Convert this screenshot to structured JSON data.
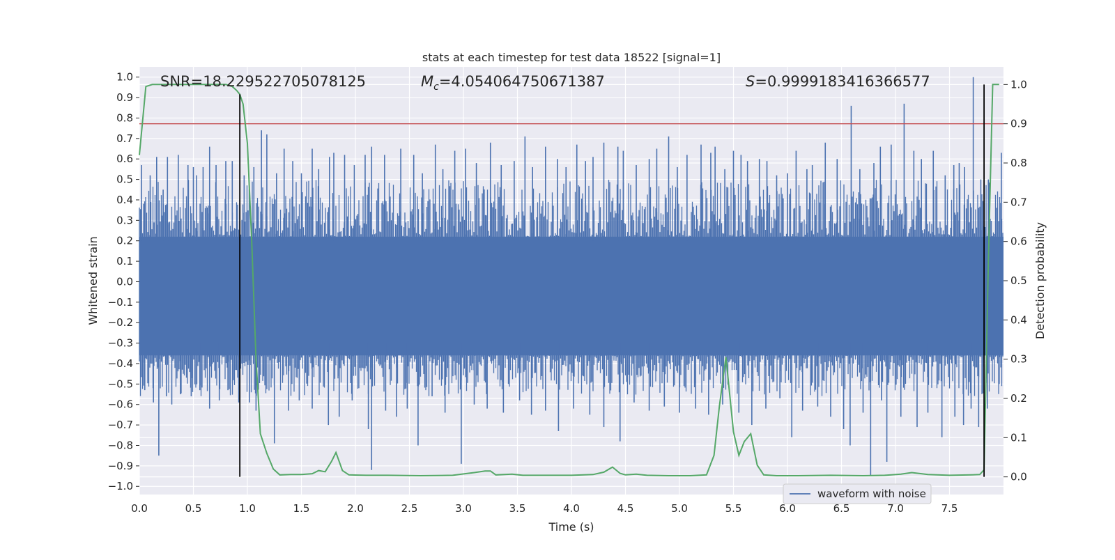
{
  "chart_data": {
    "type": "line",
    "title": "stats at each timestep for test data 18522 [signal=1]",
    "xlabel": "Time (s)",
    "ylabel": "Whitened strain",
    "y2label": "Detection probability",
    "xlim": [
      0.0,
      8.0
    ],
    "ylim": [
      -1.04,
      1.05
    ],
    "y2lim": [
      -0.045,
      1.045
    ],
    "x_ticks": [
      0.0,
      0.5,
      1.0,
      1.5,
      2.0,
      2.5,
      3.0,
      3.5,
      4.0,
      4.5,
      5.0,
      5.5,
      6.0,
      6.5,
      7.0,
      7.5
    ],
    "x_tick_labels": [
      "0.0",
      "0.5",
      "1.0",
      "1.5",
      "2.0",
      "2.5",
      "3.0",
      "3.5",
      "4.0",
      "4.5",
      "5.0",
      "5.5",
      "6.0",
      "6.5",
      "7.0",
      "7.5"
    ],
    "y_ticks": [
      1.0,
      0.9,
      0.8,
      0.7,
      0.6,
      0.5,
      0.4,
      0.3,
      0.2,
      0.1,
      0.0,
      -0.1,
      -0.2,
      -0.3,
      -0.4,
      -0.5,
      -0.6,
      -0.7,
      -0.8,
      -0.9,
      -1.0
    ],
    "y_tick_labels": [
      "1.0",
      "0.9",
      "0.8",
      "0.7",
      "0.6",
      "0.5",
      "0.4",
      "0.3",
      "0.2",
      "0.1",
      "0.0",
      "−0.1",
      "−0.2",
      "−0.3",
      "−0.4",
      "−0.5",
      "−0.6",
      "−0.7",
      "−0.8",
      "−0.9",
      "−1.0"
    ],
    "y2_ticks": [
      1.0,
      0.9,
      0.8,
      0.7,
      0.6,
      0.5,
      0.4,
      0.3,
      0.2,
      0.1,
      0.0
    ],
    "y2_tick_labels": [
      "1.0",
      "0.9",
      "0.8",
      "0.7",
      "0.6",
      "0.5",
      "0.4",
      "0.3",
      "0.2",
      "0.1",
      "0.0"
    ],
    "annotations": {
      "snr": "SNR=18.229522705078125",
      "mc_symbol": "M",
      "mc_sub": "c",
      "mc_value": "=4.054064750671387",
      "s_symbol": "S",
      "s_value": "=0.9999183416366577"
    },
    "legend": {
      "label": "waveform with noise",
      "placement": "lower-right"
    },
    "grid": true,
    "threshold_line": {
      "axis": "y2",
      "value": 0.9,
      "color": "#c44e52"
    },
    "vertical_markers": [
      {
        "x": 0.93,
        "y2_from": 0.0,
        "y2_to": 0.975
      },
      {
        "x": 7.82,
        "y2_from": 0.0,
        "y2_to": 1.0
      }
    ],
    "series": [
      {
        "name": "waveform with noise",
        "axis": "y",
        "color": "#4c72b0",
        "core_band": [
          -0.36,
          0.22
        ],
        "positive_spikes": [
          [
            0.02,
            0.57
          ],
          [
            0.1,
            0.52
          ],
          [
            0.16,
            0.61
          ],
          [
            0.22,
            0.45
          ],
          [
            0.26,
            0.61
          ],
          [
            0.36,
            0.62
          ],
          [
            0.45,
            0.57
          ],
          [
            0.5,
            0.56
          ],
          [
            0.53,
            0.52
          ],
          [
            0.59,
            0.56
          ],
          [
            0.65,
            0.66
          ],
          [
            0.71,
            0.57
          ],
          [
            0.8,
            0.59
          ],
          [
            0.86,
            0.59
          ],
          [
            0.97,
            0.52
          ],
          [
            1.06,
            0.56
          ],
          [
            1.13,
            0.74
          ],
          [
            1.18,
            0.72
          ],
          [
            1.27,
            0.53
          ],
          [
            1.34,
            0.65
          ],
          [
            1.42,
            0.59
          ],
          [
            1.5,
            0.53
          ],
          [
            1.6,
            0.65
          ],
          [
            1.66,
            0.55
          ],
          [
            1.76,
            0.61
          ],
          [
            1.8,
            0.63
          ],
          [
            1.9,
            0.62
          ],
          [
            1.99,
            0.57
          ],
          [
            2.09,
            0.62
          ],
          [
            2.15,
            0.66
          ],
          [
            2.27,
            0.62
          ],
          [
            2.42,
            0.65
          ],
          [
            2.54,
            0.62
          ],
          [
            2.62,
            0.53
          ],
          [
            2.74,
            0.67
          ],
          [
            2.81,
            0.55
          ],
          [
            2.92,
            0.64
          ],
          [
            3.02,
            0.65
          ],
          [
            3.12,
            0.58
          ],
          [
            3.25,
            0.68
          ],
          [
            3.35,
            0.57
          ],
          [
            3.47,
            0.59
          ],
          [
            3.57,
            0.71
          ],
          [
            3.64,
            0.56
          ],
          [
            3.76,
            0.66
          ],
          [
            3.87,
            0.6
          ],
          [
            3.95,
            0.56
          ],
          [
            4.05,
            0.67
          ],
          [
            4.13,
            0.59
          ],
          [
            4.2,
            0.61
          ],
          [
            4.3,
            0.68
          ],
          [
            4.43,
            0.66
          ],
          [
            4.48,
            0.64
          ],
          [
            4.6,
            0.57
          ],
          [
            4.72,
            0.6
          ],
          [
            4.79,
            0.65
          ],
          [
            4.9,
            0.71
          ],
          [
            4.98,
            0.56
          ],
          [
            5.07,
            0.62
          ],
          [
            5.2,
            0.67
          ],
          [
            5.29,
            0.63
          ],
          [
            5.33,
            0.66
          ],
          [
            5.42,
            0.55
          ],
          [
            5.5,
            0.64
          ],
          [
            5.57,
            0.62
          ],
          [
            5.63,
            0.59
          ],
          [
            5.74,
            0.6
          ],
          [
            5.81,
            0.59
          ],
          [
            5.9,
            0.52
          ],
          [
            6.0,
            0.53
          ],
          [
            6.08,
            0.64
          ],
          [
            6.18,
            0.55
          ],
          [
            6.23,
            0.57
          ],
          [
            6.35,
            0.68
          ],
          [
            6.46,
            0.6
          ],
          [
            6.59,
            0.86
          ],
          [
            6.67,
            0.55
          ],
          [
            6.8,
            0.58
          ],
          [
            6.86,
            0.66
          ],
          [
            6.96,
            0.67
          ],
          [
            7.08,
            0.87
          ],
          [
            7.17,
            0.64
          ],
          [
            7.24,
            0.6
          ],
          [
            7.35,
            0.64
          ],
          [
            7.46,
            0.52
          ],
          [
            7.54,
            0.57
          ],
          [
            7.59,
            0.58
          ],
          [
            7.64,
            0.56
          ],
          [
            7.72,
            1.0
          ],
          [
            7.79,
            0.5
          ],
          [
            7.86,
            0.5
          ],
          [
            7.98,
            0.63
          ]
        ],
        "negative_spikes": [
          [
            0.05,
            -0.53
          ],
          [
            0.13,
            -0.59
          ],
          [
            0.18,
            -0.85
          ],
          [
            0.25,
            -0.56
          ],
          [
            0.3,
            -0.6
          ],
          [
            0.38,
            -0.55
          ],
          [
            0.48,
            -0.56
          ],
          [
            0.56,
            -0.53
          ],
          [
            0.65,
            -0.62
          ],
          [
            0.74,
            -0.58
          ],
          [
            0.82,
            -0.53
          ],
          [
            0.92,
            -0.59
          ],
          [
            1.02,
            -0.59
          ],
          [
            1.08,
            -0.63
          ],
          [
            1.25,
            -0.79
          ],
          [
            1.38,
            -0.63
          ],
          [
            1.48,
            -0.58
          ],
          [
            1.6,
            -0.62
          ],
          [
            1.75,
            -0.7
          ],
          [
            1.85,
            -0.66
          ],
          [
            1.97,
            -0.58
          ],
          [
            2.12,
            -0.72
          ],
          [
            2.15,
            -0.92
          ],
          [
            2.28,
            -0.63
          ],
          [
            2.38,
            -0.66
          ],
          [
            2.48,
            -0.62
          ],
          [
            2.58,
            -0.8
          ],
          [
            2.71,
            -0.56
          ],
          [
            2.83,
            -0.64
          ],
          [
            2.98,
            -0.89
          ],
          [
            3.1,
            -0.6
          ],
          [
            3.22,
            -0.62
          ],
          [
            3.37,
            -0.64
          ],
          [
            3.52,
            -0.58
          ],
          [
            3.63,
            -0.65
          ],
          [
            3.76,
            -0.63
          ],
          [
            3.88,
            -0.73
          ],
          [
            4.02,
            -0.62
          ],
          [
            4.17,
            -0.65
          ],
          [
            4.3,
            -0.71
          ],
          [
            4.45,
            -0.78
          ],
          [
            4.58,
            -0.59
          ],
          [
            4.72,
            -0.63
          ],
          [
            4.86,
            -0.61
          ],
          [
            5.0,
            -0.64
          ],
          [
            5.15,
            -0.62
          ],
          [
            5.27,
            -0.65
          ],
          [
            5.4,
            -0.6
          ],
          [
            5.55,
            -0.64
          ],
          [
            5.67,
            -0.7
          ],
          [
            5.8,
            -0.62
          ],
          [
            5.93,
            -0.57
          ],
          [
            6.04,
            -0.76
          ],
          [
            6.14,
            -0.63
          ],
          [
            6.28,
            -0.61
          ],
          [
            6.4,
            -0.66
          ],
          [
            6.52,
            -0.72
          ],
          [
            6.58,
            -0.8
          ],
          [
            6.7,
            -0.64
          ],
          [
            6.77,
            -0.95
          ],
          [
            6.87,
            -0.58
          ],
          [
            6.92,
            -0.88
          ],
          [
            7.05,
            -0.66
          ],
          [
            7.2,
            -0.71
          ],
          [
            7.3,
            -0.64
          ],
          [
            7.43,
            -0.76
          ],
          [
            7.55,
            -0.66
          ],
          [
            7.63,
            -0.7
          ],
          [
            7.7,
            -0.62
          ],
          [
            7.77,
            -0.71
          ],
          [
            7.85,
            -0.62
          ],
          [
            7.96,
            -0.5
          ]
        ]
      },
      {
        "name": "",
        "axis": "y2",
        "color": "#55a868",
        "x": [
          0.0,
          0.06,
          0.12,
          0.2,
          0.3,
          0.4,
          0.5,
          0.6,
          0.7,
          0.8,
          0.86,
          0.9,
          0.93,
          0.96,
          1.0,
          1.04,
          1.08,
          1.12,
          1.18,
          1.24,
          1.3,
          1.4,
          1.5,
          1.6,
          1.66,
          1.72,
          1.78,
          1.82,
          1.88,
          1.94,
          2.1,
          2.3,
          2.6,
          2.9,
          3.1,
          3.2,
          3.25,
          3.3,
          3.45,
          3.55,
          3.8,
          4.0,
          4.2,
          4.3,
          4.38,
          4.45,
          4.5,
          4.6,
          4.7,
          4.9,
          5.1,
          5.25,
          5.32,
          5.37,
          5.43,
          5.5,
          5.55,
          5.6,
          5.66,
          5.72,
          5.78,
          5.9,
          6.1,
          6.4,
          6.7,
          6.9,
          7.05,
          7.15,
          7.3,
          7.5,
          7.7,
          7.78,
          7.82,
          7.86,
          7.9,
          7.96
        ],
        "values": [
          0.82,
          0.995,
          1.0,
          1.0,
          1.0,
          1.0,
          1.0,
          1.0,
          1.0,
          1.0,
          0.995,
          0.985,
          0.975,
          0.95,
          0.85,
          0.6,
          0.3,
          0.11,
          0.06,
          0.02,
          0.005,
          0.006,
          0.006,
          0.008,
          0.016,
          0.013,
          0.04,
          0.062,
          0.016,
          0.005,
          0.004,
          0.004,
          0.003,
          0.004,
          0.011,
          0.015,
          0.015,
          0.005,
          0.007,
          0.004,
          0.004,
          0.004,
          0.006,
          0.012,
          0.025,
          0.009,
          0.005,
          0.007,
          0.004,
          0.003,
          0.003,
          0.005,
          0.055,
          0.18,
          0.305,
          0.115,
          0.055,
          0.09,
          0.11,
          0.03,
          0.005,
          0.003,
          0.003,
          0.004,
          0.003,
          0.004,
          0.007,
          0.011,
          0.006,
          0.004,
          0.005,
          0.006,
          0.018,
          0.55,
          1.0,
          1.0
        ]
      }
    ]
  }
}
